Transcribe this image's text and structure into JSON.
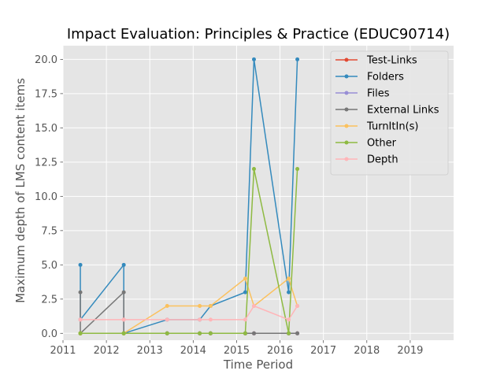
{
  "chart_data": {
    "type": "line",
    "title": "Impact Evaluation: Principles & Practice (EDUC90714)",
    "xlabel": "Time Period",
    "ylabel": "Maximum depth of LMS content items",
    "xlim": [
      2011,
      2020
    ],
    "ylim": [
      -0.5,
      21.0
    ],
    "xticks": [
      2011,
      2012,
      2013,
      2014,
      2015,
      2016,
      2017,
      2018,
      2019
    ],
    "xtick_labels": [
      "2011",
      "2012",
      "2013",
      "2014",
      "2015",
      "2016",
      "2017",
      "2018",
      "2019"
    ],
    "yticks": [
      0,
      2.5,
      5,
      7.5,
      10,
      12.5,
      15,
      17.5,
      20
    ],
    "ytick_labels": [
      "0.0",
      "2.5",
      "5.0",
      "7.5",
      "10.0",
      "12.5",
      "15.0",
      "17.5",
      "20.0"
    ],
    "grid": true,
    "legend_position": "top-right",
    "background": "#e5e5e5",
    "series": [
      {
        "name": "Test-Links",
        "color": "#e24a33",
        "x": [
          2011.4,
          2011.4,
          2012.4,
          2012.4,
          2013.4,
          2014.15,
          2014.4,
          2015.2,
          2015.4,
          2016.2,
          2016.4
        ],
        "y": [
          0,
          0,
          0,
          0,
          0,
          0,
          0,
          0,
          0,
          0,
          0
        ]
      },
      {
        "name": "Folders",
        "color": "#348abd",
        "x": [
          2011.4,
          2011.4,
          2012.4,
          2012.4,
          2013.4,
          2014.15,
          2014.4,
          2015.2,
          2015.4,
          2016.2,
          2016.4
        ],
        "y": [
          5,
          1,
          5,
          0,
          1,
          1,
          2,
          3,
          20,
          3,
          20
        ]
      },
      {
        "name": "Files",
        "color": "#988ed5",
        "x": [
          2011.4,
          2011.4,
          2012.4,
          2012.4,
          2013.4,
          2014.15,
          2014.4,
          2015.2,
          2015.4,
          2016.2,
          2016.4
        ],
        "y": [
          0,
          0,
          0,
          0,
          0,
          0,
          0,
          0,
          0,
          0,
          0
        ]
      },
      {
        "name": "External Links",
        "color": "#777777",
        "x": [
          2011.4,
          2011.4,
          2012.4,
          2012.4,
          2013.4,
          2014.15,
          2014.4,
          2015.2,
          2015.4,
          2016.2,
          2016.4
        ],
        "y": [
          3,
          0,
          3,
          0,
          0,
          0,
          0,
          0,
          0,
          0,
          0
        ]
      },
      {
        "name": "TurnItIn(s)",
        "color": "#fbc15e",
        "x": [
          2011.4,
          2011.4,
          2012.4,
          2012.4,
          2013.4,
          2014.15,
          2014.4,
          2015.2,
          2015.4,
          2016.2,
          2016.4
        ],
        "y": [
          0,
          0,
          0,
          0,
          2,
          2,
          2,
          4,
          2,
          4,
          2
        ]
      },
      {
        "name": "Other",
        "color": "#8eba42",
        "x": [
          2011.4,
          2011.4,
          2012.4,
          2012.4,
          2013.4,
          2014.15,
          2014.4,
          2015.2,
          2015.4,
          2016.2,
          2016.4
        ],
        "y": [
          0,
          0,
          0,
          0,
          0,
          0,
          0,
          0,
          12,
          0,
          12
        ]
      },
      {
        "name": "Depth",
        "color": "#ffb5b8",
        "x": [
          2011.4,
          2011.4,
          2012.4,
          2012.4,
          2013.4,
          2014.15,
          2014.4,
          2015.2,
          2015.4,
          2016.2,
          2016.4
        ],
        "y": [
          1,
          1,
          1,
          1,
          1,
          1,
          1,
          1,
          2,
          1,
          2
        ]
      }
    ]
  }
}
